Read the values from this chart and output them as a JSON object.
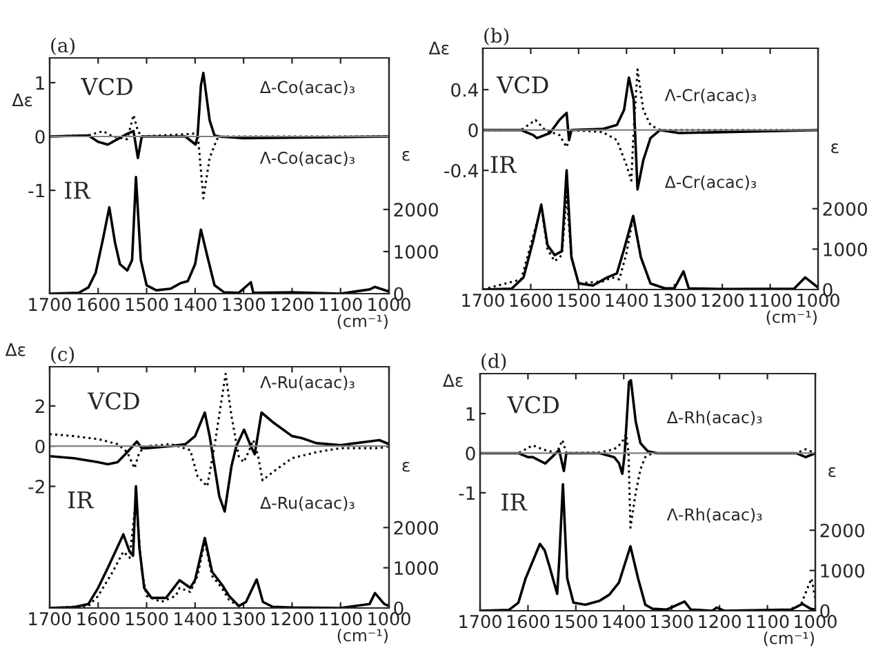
{
  "chart_data": [
    {
      "type": "line",
      "title": "(a)",
      "xlabel": "(cm⁻¹)",
      "ylabel": "Δε",
      "y2label": "ε",
      "xlim": [
        1700,
        1000
      ],
      "xticks": [
        1700,
        1600,
        1500,
        1400,
        1300,
        1200,
        1100,
        1000
      ],
      "ylim": [
        -2.92,
        1.46
      ],
      "yticks": [
        1,
        0,
        -1
      ],
      "y2lim": [
        0,
        5600
      ],
      "y2ticks": [
        0,
        1000,
        2000
      ],
      "ref_lines": [
        {
          "axis": "y",
          "value": 0,
          "color": "#808080"
        }
      ],
      "annotations": [
        "VCD",
        "IR",
        "Δ-Co(acac)₃",
        "Λ-Co(acac)₃"
      ],
      "series": [
        {
          "color": "#000000",
          "line_style": "solid",
          "axis": "y",
          "x": [
            1700,
            1620,
            1600,
            1580,
            1560,
            1540,
            1527,
            1518,
            1510,
            1420,
            1399,
            1395,
            1388,
            1383,
            1370,
            1360,
            1350,
            1300,
            1000
          ],
          "values": [
            0,
            0.02,
            -0.1,
            -0.15,
            -0.05,
            0.05,
            0.1,
            -0.4,
            0,
            0,
            -0.15,
            0,
            0.95,
            1.18,
            0.3,
            0.02,
            0,
            -0.03,
            0
          ]
        },
        {
          "color": "#000000",
          "line_style": "dotted",
          "axis": "y",
          "x": [
            1700,
            1620,
            1590,
            1570,
            1540,
            1527,
            1518,
            1510,
            1405,
            1395,
            1383,
            1370,
            1355,
            1340,
            1000
          ],
          "values": [
            0,
            0.02,
            0.1,
            0,
            -0.05,
            0.4,
            0.1,
            0,
            0.05,
            0.1,
            -1.15,
            -0.4,
            -0.05,
            0,
            0
          ]
        },
        {
          "color": "#000000",
          "line_style": "solid",
          "axis": "y2",
          "x": [
            1700,
            1640,
            1620,
            1605,
            1590,
            1577,
            1565,
            1555,
            1540,
            1530,
            1522,
            1512,
            1500,
            1480,
            1450,
            1430,
            1415,
            1400,
            1388,
            1375,
            1360,
            1340,
            1310,
            1285,
            1280,
            1200,
            1100,
            1040,
            1029,
            1000
          ],
          "values": [
            0,
            20,
            150,
            500,
            1300,
            2050,
            1200,
            700,
            550,
            800,
            2770,
            800,
            200,
            80,
            120,
            250,
            300,
            700,
            1520,
            900,
            200,
            30,
            20,
            270,
            20,
            30,
            0,
            100,
            160,
            50
          ]
        }
      ]
    },
    {
      "type": "line",
      "title": "(b)",
      "xlabel": "(cm⁻¹)",
      "ylabel": "Δε",
      "y2label": "ε",
      "xlim": [
        1700,
        1000
      ],
      "xticks": [
        1700,
        1600,
        1500,
        1400,
        1300,
        1200,
        1100,
        1000
      ],
      "ylim": [
        -1.58,
        0.81
      ],
      "yticks": [
        0.4,
        0,
        -0.4
      ],
      "y2lim": [
        0,
        5970
      ],
      "y2ticks": [
        0,
        1000,
        2000
      ],
      "ref_lines": [
        {
          "axis": "y",
          "value": 0,
          "color": "#808080"
        }
      ],
      "annotations": [
        "VCD",
        "IR",
        "Λ-Cr(acac)₃",
        "Δ-Cr(acac)₃"
      ],
      "series": [
        {
          "color": "#000000",
          "line_style": "solid",
          "axis": "y",
          "x": [
            1700,
            1620,
            1595,
            1587,
            1560,
            1540,
            1525,
            1520,
            1515,
            1450,
            1420,
            1405,
            1395,
            1385,
            1377,
            1365,
            1350,
            1330,
            1290,
            1000
          ],
          "values": [
            0,
            0,
            -0.05,
            -0.08,
            -0.03,
            0.1,
            0.17,
            -0.1,
            0,
            0.01,
            0.05,
            0.2,
            0.52,
            0.3,
            -0.59,
            -0.3,
            -0.08,
            0,
            -0.03,
            0
          ]
        },
        {
          "color": "#000000",
          "line_style": "dotted",
          "axis": "y",
          "x": [
            1700,
            1620,
            1590,
            1570,
            1540,
            1525,
            1515,
            1450,
            1420,
            1400,
            1390,
            1385,
            1377,
            1365,
            1350,
            1330,
            1000
          ],
          "values": [
            0,
            0,
            0.1,
            0,
            -0.05,
            -0.17,
            0,
            -0.02,
            -0.1,
            -0.35,
            -0.5,
            0,
            0.6,
            0.2,
            0.05,
            0,
            0
          ]
        },
        {
          "color": "#000000",
          "line_style": "solid",
          "axis": "y2",
          "x": [
            1700,
            1640,
            1615,
            1595,
            1578,
            1565,
            1550,
            1535,
            1525,
            1515,
            1500,
            1470,
            1440,
            1420,
            1405,
            1386,
            1370,
            1350,
            1320,
            1300,
            1281,
            1270,
            1200,
            1050,
            1027,
            1000
          ],
          "values": [
            0,
            20,
            300,
            1200,
            2100,
            1100,
            850,
            950,
            2950,
            800,
            150,
            100,
            300,
            400,
            1000,
            1820,
            800,
            150,
            30,
            30,
            450,
            30,
            10,
            20,
            300,
            50
          ]
        },
        {
          "color": "#000000",
          "line_style": "dotted",
          "axis": "y2",
          "x": [
            1700,
            1620,
            1600,
            1578,
            1565,
            1550,
            1535,
            1525,
            1515,
            1500,
            1450,
            1430,
            1415,
            1400,
            1386,
            1370,
            1350,
            1320
          ],
          "values": [
            0,
            250,
            1100,
            2050,
            1000,
            700,
            850,
            2300,
            800,
            150,
            200,
            300,
            250,
            900,
            1800,
            800,
            150,
            30
          ]
        }
      ]
    },
    {
      "type": "line",
      "title": "(c)",
      "xlabel": "(cm⁻¹)",
      "ylabel": "Δε",
      "y2label": "ε",
      "xlim": [
        1700,
        1000
      ],
      "xticks": [
        1700,
        1600,
        1500,
        1400,
        1300,
        1200,
        1100,
        1000
      ],
      "ylim": [
        -8.05,
        3.95
      ],
      "yticks": [
        2,
        0,
        -2
      ],
      "y2lim": [
        0,
        6000
      ],
      "y2ticks": [
        0,
        1000,
        2000
      ],
      "ref_lines": [
        {
          "axis": "y",
          "value": 0,
          "color": "#808080"
        }
      ],
      "annotations": [
        "VCD",
        "IR",
        "Λ-Ru(acac)₃",
        "Δ-Ru(acac)₃"
      ],
      "series": [
        {
          "color": "#000000",
          "line_style": "solid",
          "axis": "y",
          "x": [
            1700,
            1650,
            1600,
            1580,
            1560,
            1540,
            1520,
            1510,
            1500,
            1450,
            1420,
            1400,
            1380,
            1370,
            1360,
            1350,
            1339,
            1325,
            1315,
            1299,
            1285,
            1277,
            1263,
            1240,
            1200,
            1180,
            1150,
            1100,
            1020,
            1000
          ],
          "values": [
            -0.5,
            -0.6,
            -0.8,
            -0.9,
            -0.8,
            -0.3,
            0.23,
            -0.1,
            -0.1,
            0,
            0.1,
            0.5,
            1.67,
            0.5,
            -1,
            -2.5,
            -3.25,
            -1,
            0,
            0.82,
            0,
            -0.4,
            1.67,
            1.2,
            0.5,
            0.4,
            0.15,
            0.05,
            0.3,
            0.1
          ]
        },
        {
          "color": "#000000",
          "line_style": "dotted",
          "axis": "y",
          "x": [
            1700,
            1650,
            1600,
            1560,
            1540,
            1525,
            1515,
            1500,
            1450,
            1410,
            1395,
            1375,
            1360,
            1337,
            1325,
            1310,
            1300,
            1290,
            1280,
            1270,
            1261,
            1240,
            1200,
            1150,
            1100,
            1020,
            1000
          ],
          "values": [
            0.6,
            0.5,
            0.35,
            0.1,
            -0.3,
            -1.1,
            -0.3,
            0,
            0.1,
            -0.2,
            -1.5,
            -2,
            0,
            3.6,
            1.5,
            -0.5,
            -0.8,
            -0.3,
            0.3,
            -0.5,
            -1.7,
            -1.3,
            -0.6,
            -0.3,
            -0.1,
            -0.1,
            0
          ]
        },
        {
          "color": "#000000",
          "line_style": "solid",
          "axis": "y2",
          "x": [
            1700,
            1650,
            1620,
            1600,
            1580,
            1548,
            1535,
            1528,
            1522,
            1515,
            1505,
            1490,
            1460,
            1432,
            1410,
            1400,
            1380,
            1365,
            1344,
            1330,
            1310,
            1295,
            1273,
            1260,
            1240,
            1200,
            1100,
            1040,
            1029,
            1010,
            1000
          ],
          "values": [
            0,
            20,
            100,
            500,
            1000,
            1830,
            1400,
            1300,
            3030,
            1500,
            500,
            250,
            250,
            690,
            500,
            700,
            1740,
            900,
            570,
            300,
            50,
            150,
            710,
            150,
            30,
            10,
            0,
            100,
            370,
            100,
            50
          ]
        },
        {
          "color": "#000000",
          "line_style": "dotted",
          "axis": "y2",
          "x": [
            1700,
            1620,
            1600,
            1570,
            1548,
            1535,
            1522,
            1510,
            1500,
            1470,
            1440,
            1432,
            1410,
            1395,
            1380,
            1365,
            1345,
            1330,
            1310
          ],
          "values": [
            0,
            50,
            300,
            900,
            1400,
            1250,
            2700,
            900,
            300,
            150,
            300,
            500,
            400,
            800,
            1650,
            800,
            500,
            200,
            50
          ]
        }
      ]
    },
    {
      "type": "line",
      "title": "(d)",
      "xlabel": "(cm⁻¹)",
      "ylabel": "Δε",
      "y2label": "ε",
      "xlim": [
        1700,
        1000
      ],
      "xticks": [
        1700,
        1600,
        1500,
        1400,
        1300,
        1200,
        1100,
        1000
      ],
      "ylim": [
        -3.98,
        2.01
      ],
      "yticks": [
        1,
        0,
        -1
      ],
      "y2lim": [
        0,
        5890
      ],
      "y2ticks": [
        0,
        1000,
        2000
      ],
      "ref_lines": [
        {
          "axis": "y",
          "value": 0,
          "color": "#808080"
        }
      ],
      "annotations": [
        "VCD",
        "IR",
        "Δ-Rh(acac)₃",
        "Λ-Rh(acac)₃"
      ],
      "series": [
        {
          "color": "#000000",
          "line_style": "solid",
          "axis": "y",
          "x": [
            1700,
            1620,
            1600,
            1590,
            1564,
            1550,
            1535,
            1525,
            1520,
            1450,
            1420,
            1410,
            1403,
            1398,
            1392,
            1389,
            1385,
            1375,
            1365,
            1350,
            1330,
            1040,
            1020,
            1000
          ],
          "values": [
            0,
            0,
            -0.1,
            -0.1,
            -0.26,
            -0.1,
            0.08,
            -0.45,
            0,
            0,
            -0.1,
            -0.25,
            -0.52,
            0,
            1.2,
            1.8,
            1.84,
            0.8,
            0.25,
            0.05,
            0,
            0,
            -0.1,
            0
          ]
        },
        {
          "color": "#000000",
          "line_style": "dotted",
          "axis": "y",
          "x": [
            1700,
            1620,
            1590,
            1570,
            1540,
            1528,
            1520,
            1450,
            1420,
            1405,
            1395,
            1390,
            1386,
            1375,
            1365,
            1355,
            1340,
            1040,
            1020,
            1000
          ],
          "values": [
            0,
            0,
            0.2,
            0.1,
            0,
            0.33,
            0,
            0.02,
            0.1,
            0.25,
            0.48,
            0,
            -1.88,
            -1,
            -0.4,
            -0.1,
            0,
            0,
            0.1,
            0
          ]
        },
        {
          "color": "#000000",
          "line_style": "solid",
          "axis": "y2",
          "x": [
            1700,
            1640,
            1620,
            1605,
            1575,
            1565,
            1555,
            1539,
            1535,
            1527,
            1518,
            1505,
            1480,
            1450,
            1430,
            1410,
            1386,
            1370,
            1355,
            1340,
            1310,
            1273,
            1260,
            1215,
            1206,
            1190,
            1050,
            1027,
            1010,
            1000
          ],
          "values": [
            0,
            20,
            200,
            800,
            1660,
            1500,
            1100,
            420,
            1200,
            3140,
            800,
            200,
            150,
            250,
            400,
            700,
            1600,
            800,
            150,
            50,
            30,
            230,
            30,
            0,
            80,
            0,
            30,
            170,
            50,
            30
          ]
        },
        {
          "color": "#000000",
          "line_style": "dotted",
          "axis": "y2",
          "x": [
            1060,
            1030,
            1015,
            1008,
            1000
          ],
          "values": [
            0,
            150,
            600,
            800,
            300
          ]
        }
      ]
    }
  ]
}
